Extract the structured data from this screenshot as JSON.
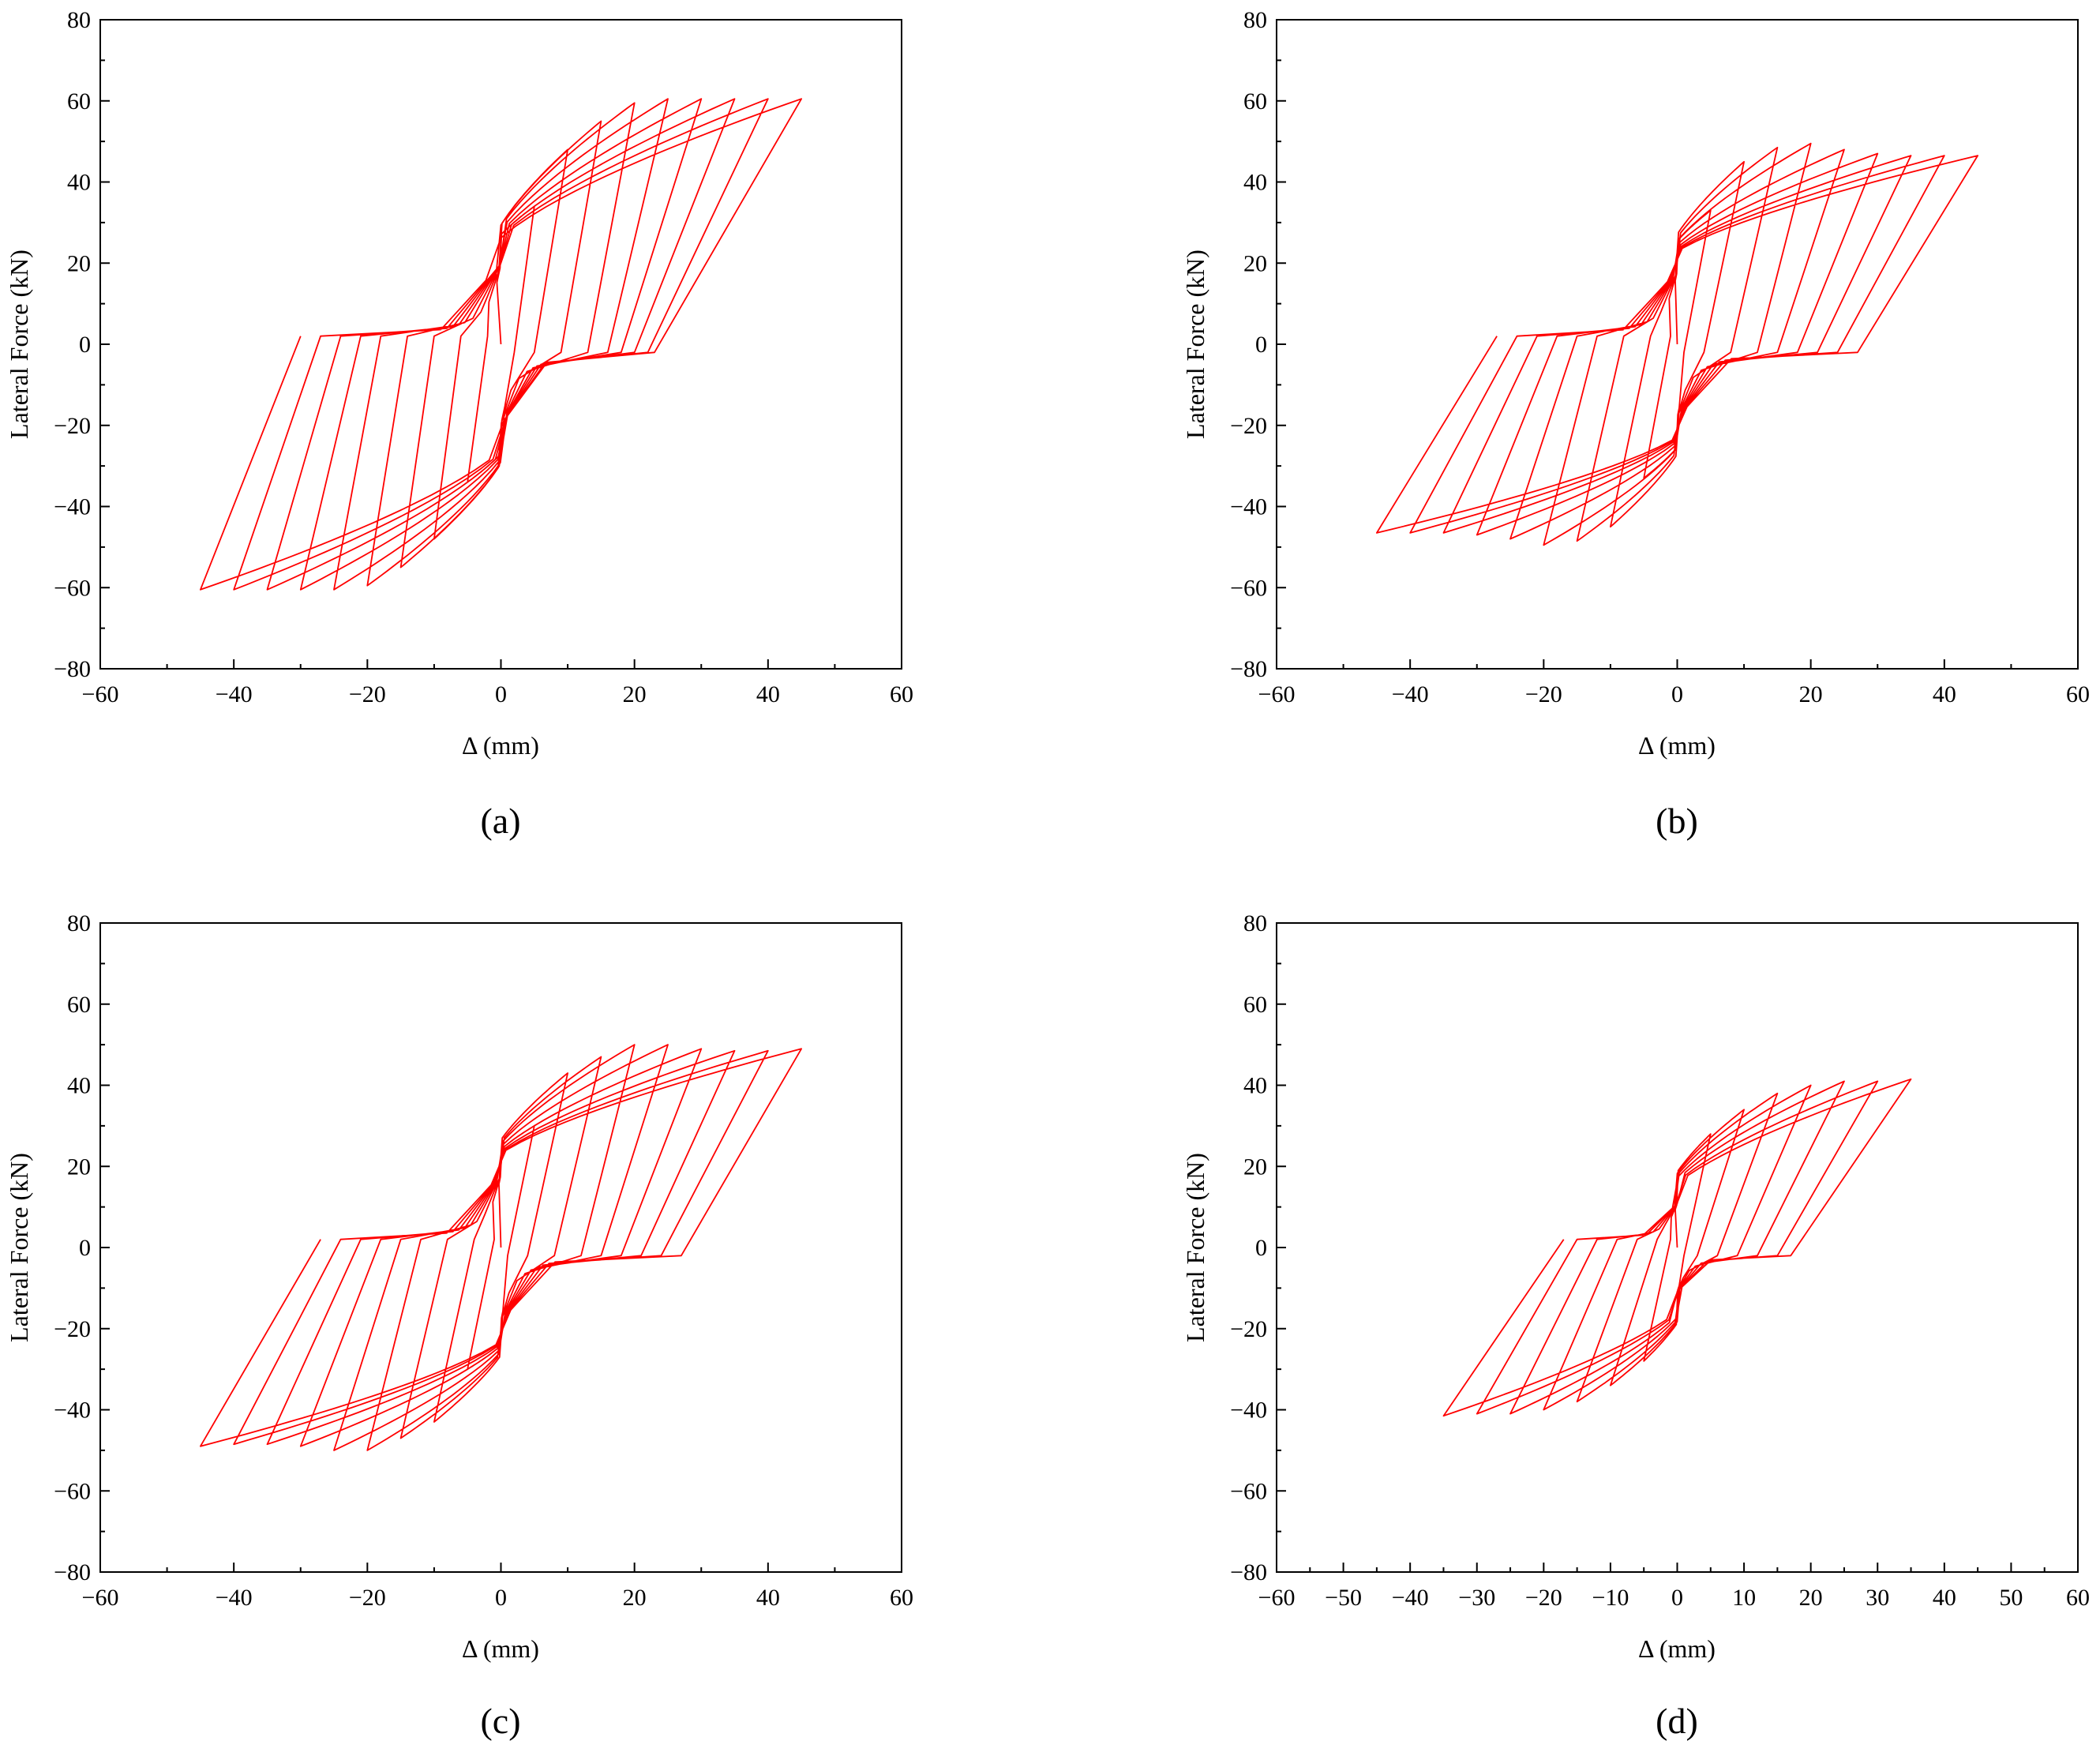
{
  "colors": {
    "curve": "#ff0000",
    "axis": "#000000"
  },
  "chart_data": [
    {
      "type": "line",
      "caption": "(a)",
      "xlabel": "Δ (mm)",
      "ylabel": "Lateral Force (kN)",
      "xlim": [
        -60,
        60
      ],
      "ylim": [
        -80,
        80
      ],
      "xticks": [
        -60,
        -40,
        -20,
        0,
        20,
        40,
        60
      ],
      "xtick_labels": [
        "−60",
        "−40",
        "−20",
        "0",
        "20",
        "40",
        "60"
      ],
      "yticks": [
        -80,
        -60,
        -40,
        -20,
        0,
        20,
        40,
        60,
        80
      ],
      "ytick_labels": [
        "−80",
        "−60",
        "−40",
        "−20",
        "0",
        "20",
        "40",
        "60",
        "80"
      ],
      "grid": false,
      "series": [
        {
          "name": "hysteresis",
          "model": {
            "amps": [
              5,
              10,
              15,
              20,
              25,
              30,
              35,
              40,
              45
            ],
            "peaks": [
              34,
              48,
              55,
              59.5,
              60.5,
              60.5,
              60.5,
              60.5,
              60.5
            ],
            "pinch": 22,
            "unloadPos": [
              2,
              5,
              9,
              13,
              16,
              18,
              20,
              22,
              23
            ],
            "unloadNeg": [
              -2,
              -6,
              -10,
              -14,
              -18,
              -21,
              -24,
              -27,
              -30
            ]
          }
        }
      ]
    },
    {
      "type": "line",
      "caption": "(b)",
      "xlabel": "Δ (mm)",
      "ylabel": "Lateral Force (kN)",
      "xlim": [
        -60,
        60
      ],
      "ylim": [
        -80,
        80
      ],
      "xticks": [
        -60,
        -40,
        -20,
        0,
        20,
        40,
        60
      ],
      "xtick_labels": [
        "−60",
        "−40",
        "−20",
        "0",
        "20",
        "40",
        "60"
      ],
      "yticks": [
        -80,
        -60,
        -40,
        -20,
        0,
        20,
        40,
        60,
        80
      ],
      "ytick_labels": [
        "−80",
        "−60",
        "−40",
        "−20",
        "0",
        "20",
        "40",
        "60",
        "80"
      ],
      "grid": false,
      "series": [
        {
          "name": "hysteresis",
          "model": {
            "amps": [
              5,
              10,
              15,
              20,
              25,
              30,
              35,
              40,
              45
            ],
            "peaks": [
              33,
              45,
              48.5,
              49.5,
              48,
              47,
              46.5,
              46.5,
              46.5
            ],
            "pinch": 20,
            "unloadPos": [
              1,
              4,
              8,
              12,
              15,
              18,
              21,
              24,
              27
            ],
            "unloadNeg": [
              -1,
              -4,
              -8,
              -12,
              -15,
              -18,
              -21,
              -24,
              -27
            ]
          }
        }
      ]
    },
    {
      "type": "line",
      "caption": "(c)",
      "xlabel": "Δ (mm)",
      "ylabel": "Lateral Force (kN)",
      "xlim": [
        -60,
        60
      ],
      "ylim": [
        -80,
        80
      ],
      "xticks": [
        -60,
        -40,
        -20,
        0,
        20,
        40,
        60
      ],
      "xtick_labels": [
        "−60",
        "−40",
        "−20",
        "0",
        "20",
        "40",
        "60"
      ],
      "yticks": [
        -80,
        -60,
        -40,
        -20,
        0,
        20,
        40,
        60,
        80
      ],
      "ytick_labels": [
        "−80",
        "−60",
        "−40",
        "−20",
        "0",
        "20",
        "40",
        "60",
        "80"
      ],
      "grid": false,
      "series": [
        {
          "name": "hysteresis",
          "model": {
            "amps": [
              5,
              10,
              15,
              20,
              25,
              30,
              35,
              40,
              45
            ],
            "peaks": [
              30,
              43,
              47,
              50,
              50,
              49,
              48.5,
              48.5,
              49
            ],
            "pinch": 20,
            "unloadPos": [
              1,
              4,
              8,
              12,
              15,
              18,
              21,
              24,
              27
            ],
            "unloadNeg": [
              -1,
              -4,
              -8,
              -12,
              -15,
              -18,
              -21,
              -24,
              -27
            ]
          }
        }
      ]
    },
    {
      "type": "line",
      "caption": "(d)",
      "xlabel": "Δ (mm)",
      "ylabel": "Lateral Force (kN)",
      "xlim": [
        -60,
        60
      ],
      "ylim": [
        -80,
        80
      ],
      "xticks": [
        -60,
        -50,
        -40,
        -30,
        -20,
        -10,
        0,
        10,
        20,
        30,
        40,
        50,
        60
      ],
      "xtick_labels": [
        "−60",
        "−50",
        "−40",
        "−30",
        "−20",
        "−10",
        "0",
        "10",
        "20",
        "30",
        "40",
        "50",
        "60"
      ],
      "yticks": [
        -80,
        -60,
        -40,
        -20,
        0,
        20,
        40,
        60,
        80
      ],
      "ytick_labels": [
        "−80",
        "−60",
        "−40",
        "−20",
        "0",
        "20",
        "40",
        "60",
        "80"
      ],
      "grid": false,
      "series": [
        {
          "name": "hysteresis",
          "model": {
            "amps": [
              5,
              10,
              15,
              20,
              25,
              30,
              35
            ],
            "peaks": [
              28,
              34,
              38,
              40,
              41,
              41,
              41.5
            ],
            "pinch": 12,
            "unloadPos": [
              1,
              3,
              6,
              9,
              12,
              15,
              17
            ],
            "unloadNeg": [
              -1,
              -3,
              -6,
              -9,
              -12,
              -15,
              -17
            ]
          }
        }
      ]
    }
  ]
}
